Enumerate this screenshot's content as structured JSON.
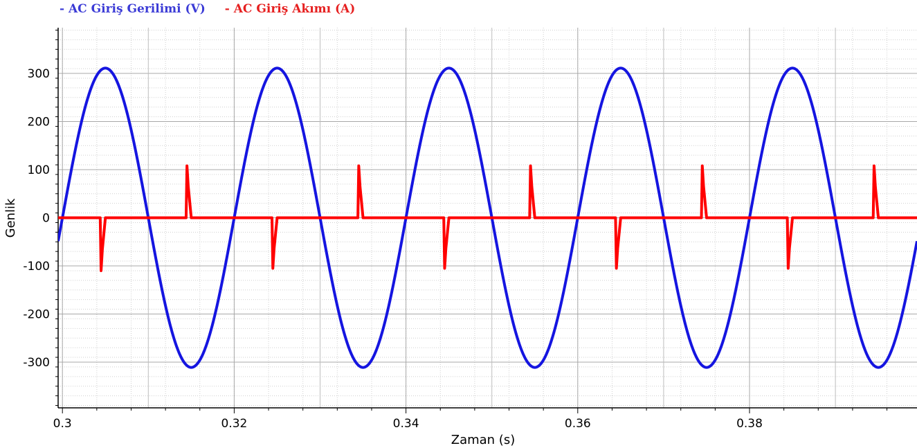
{
  "chart_data": {
    "type": "line",
    "xlabel": "Zaman (s)",
    "ylabel": "Genlik",
    "xlim": [
      0.2995,
      0.3995
    ],
    "ylim": [
      -395,
      395
    ],
    "x_ticks": [
      0.3,
      0.32,
      0.34,
      0.36,
      0.38
    ],
    "x_tick_labels": [
      "0.3",
      "0.32",
      "0.34",
      "0.36",
      "0.38"
    ],
    "y_ticks": [
      300,
      200,
      100,
      0,
      -100,
      -200,
      -300
    ],
    "y_tick_labels": [
      "300",
      "200",
      "100",
      "0",
      "-100",
      "-200",
      "-300"
    ],
    "grid": true,
    "legend_position": "top-left",
    "series": [
      {
        "name": "- AC Giriş Gerilimi (V)",
        "color": "#1515e0",
        "kind": "sine",
        "amplitude": 311,
        "frequency_hz": 50,
        "zero_crossing_rising_s": 0.3
      },
      {
        "name": "- AC Giriş Akımı (A)",
        "color": "#ff0000",
        "kind": "pulses",
        "baseline": 0,
        "pulses": [
          {
            "t": 0.3045,
            "peak": -110
          },
          {
            "t": 0.3145,
            "peak": 108
          },
          {
            "t": 0.3245,
            "peak": -105
          },
          {
            "t": 0.3345,
            "peak": 108
          },
          {
            "t": 0.3445,
            "peak": -105
          },
          {
            "t": 0.3545,
            "peak": 108
          },
          {
            "t": 0.3645,
            "peak": -105
          },
          {
            "t": 0.3745,
            "peak": 108
          },
          {
            "t": 0.3845,
            "peak": -105
          },
          {
            "t": 0.3945,
            "peak": 108
          }
        ]
      }
    ]
  }
}
